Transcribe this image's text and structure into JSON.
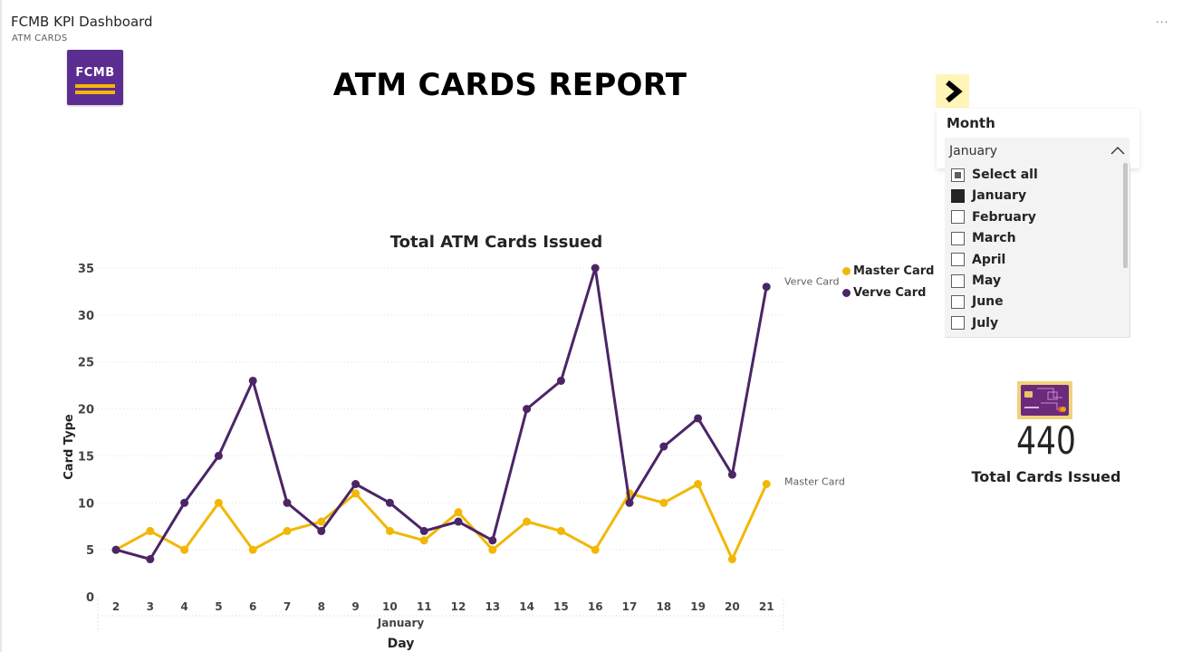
{
  "report": {
    "title": "FCMB KPI Dashboard",
    "subtitle": "ATM CARDS",
    "more_label": "..."
  },
  "logo": {
    "text": "FCMB"
  },
  "page": {
    "heading": "ATM CARDS REPORT"
  },
  "nav": {
    "icon": "chevron-right-icon"
  },
  "slicer": {
    "header": "Month",
    "selected": "January",
    "options": [
      {
        "label": "Select all",
        "state": "partial"
      },
      {
        "label": "January",
        "state": "checked"
      },
      {
        "label": "February",
        "state": "unchecked"
      },
      {
        "label": "March",
        "state": "unchecked"
      },
      {
        "label": "April",
        "state": "unchecked"
      },
      {
        "label": "May",
        "state": "unchecked"
      },
      {
        "label": "June",
        "state": "unchecked"
      },
      {
        "label": "July",
        "state": "unchecked"
      }
    ]
  },
  "kpi": {
    "value": "440",
    "label": "Total Cards Issued",
    "icon": "credit-card-icon"
  },
  "colors": {
    "master": "#f2b705",
    "verve": "#4b2566",
    "brand": "#5c2d91"
  },
  "chart_data": {
    "type": "line",
    "title": "Total ATM Cards Issued",
    "xlabel": "Day",
    "x_group_label": "January",
    "ylabel": "Card Type",
    "categories": [
      "2",
      "3",
      "4",
      "5",
      "6",
      "7",
      "8",
      "9",
      "10",
      "11",
      "12",
      "13",
      "14",
      "15",
      "16",
      "17",
      "18",
      "19",
      "20",
      "21"
    ],
    "ylim": [
      0,
      35
    ],
    "yticks": [
      0,
      5,
      10,
      15,
      20,
      25,
      30,
      35
    ],
    "grid": true,
    "legend": "top-right",
    "series": [
      {
        "name": "Master Card",
        "color": "#f2b705",
        "end_label": "Master Card",
        "values": [
          5,
          7,
          5,
          10,
          5,
          7,
          8,
          11,
          7,
          6,
          9,
          5,
          8,
          7,
          5,
          11,
          10,
          12,
          4,
          12
        ]
      },
      {
        "name": "Verve Card",
        "color": "#4b2566",
        "end_label": "Verve Card",
        "values": [
          5,
          4,
          10,
          15,
          23,
          10,
          7,
          12,
          10,
          7,
          8,
          6,
          20,
          23,
          35,
          10,
          16,
          19,
          13,
          33
        ]
      }
    ]
  }
}
